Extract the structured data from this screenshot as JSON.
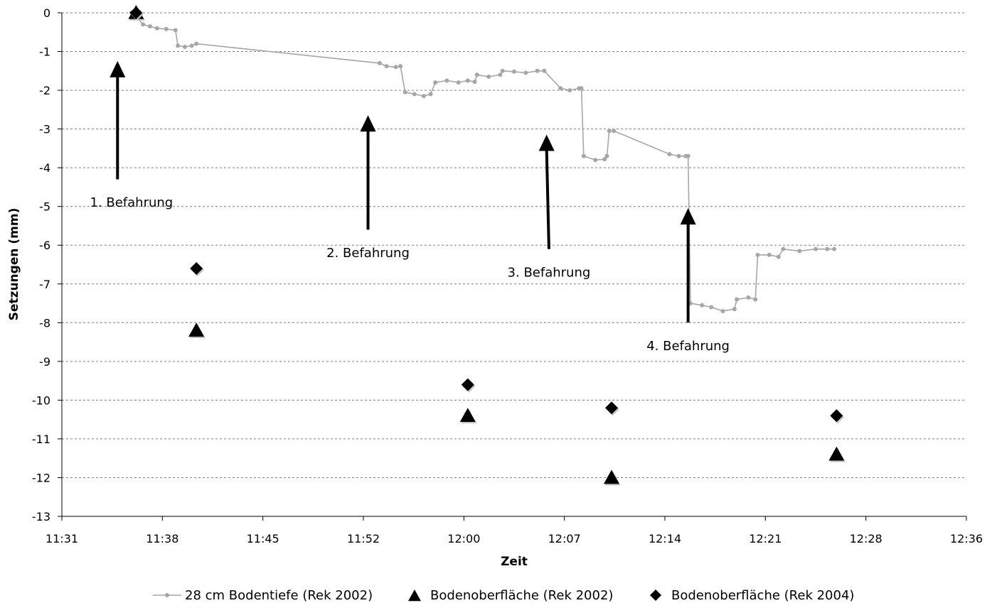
{
  "chart_data": {
    "type": "scatter",
    "xlabel": "Zeit",
    "ylabel": "Setzungen (mm)",
    "x_range": [
      "11:31",
      "12:36"
    ],
    "x_ticks": [
      "11:31",
      "11:38",
      "11:45",
      "11:52",
      "12:00",
      "12:07",
      "12:14",
      "12:21",
      "12:28",
      "12:36"
    ],
    "ylim": [
      -13,
      0
    ],
    "y_ticks": [
      0,
      -1,
      -2,
      -3,
      -4,
      -5,
      -6,
      -7,
      -8,
      -9,
      -10,
      -11,
      -12,
      -13
    ],
    "grid": "horizontal dashed",
    "legend_position": "bottom",
    "series": [
      {
        "name": "28 cm Bodentiefe (Rek 2002)",
        "style": "line",
        "color": "#a6a6a6",
        "points": [
          [
            "11:36:00",
            0.0
          ],
          [
            "11:36:20",
            -0.1
          ],
          [
            "11:36:50",
            -0.3
          ],
          [
            "11:37:20",
            -0.35
          ],
          [
            "11:37:50",
            -0.4
          ],
          [
            "11:38:30",
            -0.42
          ],
          [
            "11:39:10",
            -0.45
          ],
          [
            "11:39:20",
            -0.85
          ],
          [
            "11:39:50",
            -0.88
          ],
          [
            "11:40:20",
            -0.85
          ],
          [
            "11:40:40",
            -0.8
          ],
          [
            "11:53:50",
            -1.3
          ],
          [
            "11:54:20",
            -1.38
          ],
          [
            "11:55:00",
            -1.4
          ],
          [
            "11:55:20",
            -1.38
          ],
          [
            "11:55:40",
            -2.05
          ],
          [
            "11:56:20",
            -2.1
          ],
          [
            "11:57:00",
            -2.15
          ],
          [
            "11:57:30",
            -2.1
          ],
          [
            "11:57:50",
            -1.8
          ],
          [
            "11:58:40",
            -1.75
          ],
          [
            "11:59:30",
            -1.8
          ],
          [
            "12:00:10",
            -1.75
          ],
          [
            "12:00:40",
            -1.78
          ],
          [
            "12:00:50",
            -1.6
          ],
          [
            "12:01:40",
            -1.65
          ],
          [
            "12:02:30",
            -1.6
          ],
          [
            "12:02:40",
            -1.5
          ],
          [
            "12:03:30",
            -1.52
          ],
          [
            "12:04:20",
            -1.55
          ],
          [
            "12:05:10",
            -1.5
          ],
          [
            "12:05:40",
            -1.5
          ],
          [
            "12:06:50",
            -1.95
          ],
          [
            "12:07:30",
            -2.0
          ],
          [
            "12:08:10",
            -1.95
          ],
          [
            "12:08:20",
            -1.95
          ],
          [
            "12:08:30",
            -3.7
          ],
          [
            "12:09:20",
            -3.8
          ],
          [
            "12:10:00",
            -3.78
          ],
          [
            "12:10:10",
            -3.7
          ],
          [
            "12:10:20",
            -3.05
          ],
          [
            "12:10:40",
            -3.05
          ],
          [
            "12:14:40",
            -3.65
          ],
          [
            "12:15:20",
            -3.7
          ],
          [
            "12:15:50",
            -3.7
          ],
          [
            "12:16:00",
            -3.7
          ],
          [
            "12:16:10",
            -7.5
          ],
          [
            "12:17:00",
            -7.55
          ],
          [
            "12:17:40",
            -7.6
          ],
          [
            "12:18:30",
            -7.7
          ],
          [
            "12:19:20",
            -7.65
          ],
          [
            "12:19:30",
            -7.4
          ],
          [
            "12:20:20",
            -7.35
          ],
          [
            "12:20:50",
            -7.4
          ],
          [
            "12:21:00",
            -6.25
          ],
          [
            "12:21:50",
            -6.25
          ],
          [
            "12:22:30",
            -6.3
          ],
          [
            "12:22:50",
            -6.1
          ],
          [
            "12:24:00",
            -6.15
          ],
          [
            "12:25:10",
            -6.1
          ],
          [
            "12:26:00",
            -6.1
          ],
          [
            "12:26:30",
            -6.1
          ]
        ]
      },
      {
        "name": "Bodenoberfläche (Rek 2002)",
        "style": "marker",
        "marker": "triangle",
        "color": "#000000",
        "points": [
          [
            "11:36:20",
            0.0
          ],
          [
            "11:40:40",
            -8.2
          ],
          [
            "12:00:10",
            -10.4
          ],
          [
            "12:10:30",
            -12.0
          ],
          [
            "12:26:40",
            -11.4
          ]
        ]
      },
      {
        "name": "Bodenoberfläche (Rek 2004)",
        "style": "marker",
        "marker": "diamond",
        "color": "#000000",
        "points": [
          [
            "11:36:20",
            0.0
          ],
          [
            "11:40:40",
            -6.6
          ],
          [
            "12:00:10",
            -9.6
          ],
          [
            "12:10:30",
            -10.2
          ],
          [
            "12:26:40",
            -10.4
          ]
        ]
      }
    ],
    "annotations": [
      {
        "text": "1. Befahrung",
        "text_anchor": [
          "11:36:00",
          -4.9
        ],
        "arrow_from": [
          "11:35:00",
          -4.3
        ],
        "arrow_to": [
          "11:35:00",
          -1.3
        ]
      },
      {
        "text": "2. Befahrung",
        "text_anchor": [
          "11:53:00",
          -6.2
        ],
        "arrow_from": [
          "11:53:00",
          -5.6
        ],
        "arrow_to": [
          "11:53:00",
          -2.7
        ]
      },
      {
        "text": "3. Befahrung",
        "text_anchor": [
          "12:06:00",
          -6.7
        ],
        "arrow_from": [
          "12:06:00",
          -6.1
        ],
        "arrow_to": [
          "12:05:50",
          -3.2
        ]
      },
      {
        "text": "4. Befahrung",
        "text_anchor": [
          "12:16:00",
          -8.6
        ],
        "arrow_from": [
          "12:16:00",
          -8.0
        ],
        "arrow_to": [
          "12:16:00",
          -5.1
        ]
      }
    ]
  }
}
